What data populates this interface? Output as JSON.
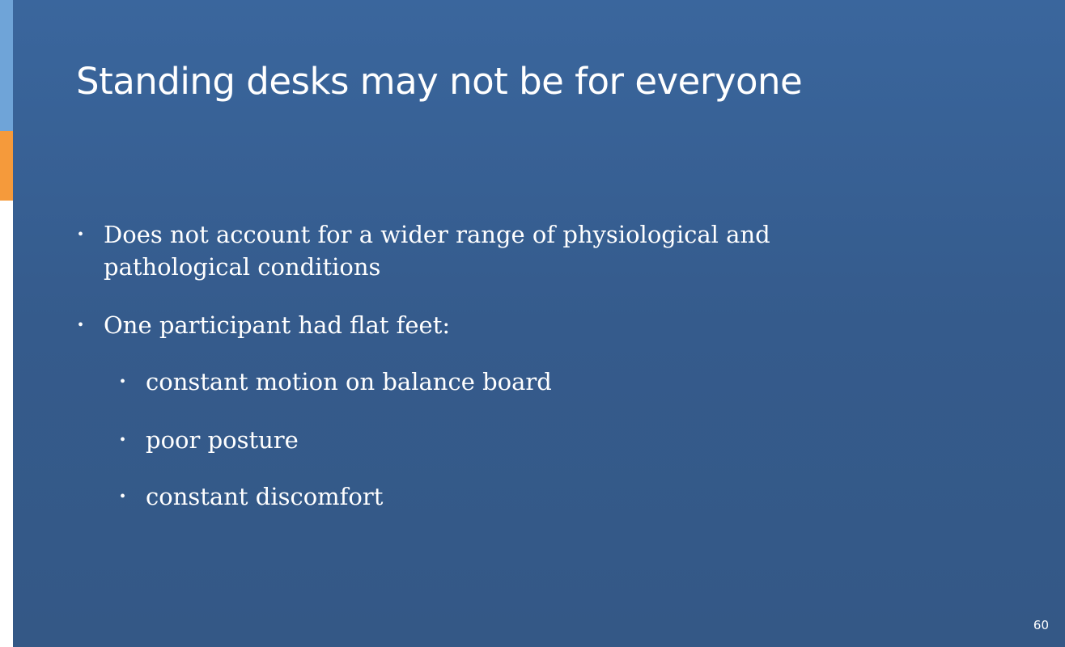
{
  "slide": {
    "title": "Standing desks may not be for everyone",
    "bullets": [
      {
        "text_line1": "Does not account for a wider range of physiological and",
        "text_line2": "pathological conditions"
      },
      {
        "text": "One participant had flat feet:",
        "sub_bullets": [
          "constant motion on balance board",
          "poor posture",
          "constant discomfort"
        ]
      }
    ],
    "bullet_glyph": "•",
    "page_number": "60"
  },
  "colors": {
    "background_top": "#3a669d",
    "background_bottom": "#345886",
    "accent_blue": "#6fa4d8",
    "accent_orange": "#f59a3b",
    "text": "#ffffff"
  }
}
